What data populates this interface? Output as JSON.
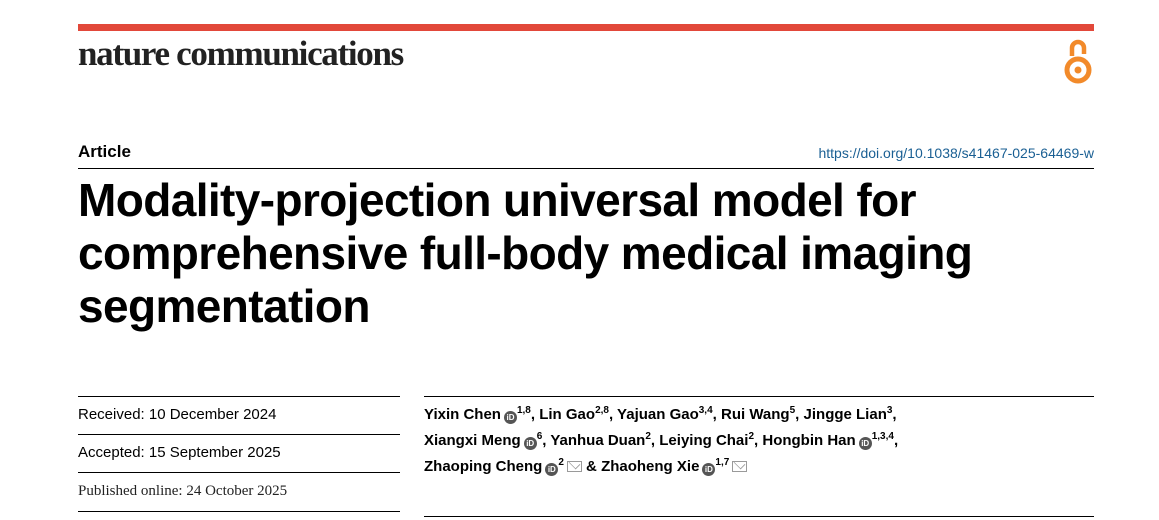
{
  "journal": "nature communications",
  "article_type": "Article",
  "doi": "https://doi.org/10.1038/s41467-025-64469-w",
  "title_lines": [
    "Modality-projection universal model for",
    "comprehensive full-body medical imaging",
    "segmentation"
  ],
  "dates": {
    "received": "Received: 10 December 2024",
    "accepted": "Accepted: 15 September 2025",
    "published": "Published online: 24 October 2025"
  },
  "authors": [
    {
      "name": "Yixin Chen",
      "orcid": true,
      "aff": "1,8",
      "sep": ","
    },
    {
      "name": "Lin Gao",
      "orcid": false,
      "aff": "2,8",
      "sep": ","
    },
    {
      "name": "Yajuan Gao",
      "orcid": false,
      "aff": "3,4",
      "sep": ","
    },
    {
      "name": "Rui Wang",
      "orcid": false,
      "aff": "5",
      "sep": ","
    },
    {
      "name": "Jingge Lian",
      "orcid": false,
      "aff": "3",
      "sep": ","
    },
    {
      "name": "Xiangxi Meng",
      "orcid": true,
      "aff": "6",
      "sep": ","
    },
    {
      "name": "Yanhua Duan",
      "orcid": false,
      "aff": "2",
      "sep": ","
    },
    {
      "name": "Leiying Chai",
      "orcid": false,
      "aff": "2",
      "sep": ","
    },
    {
      "name": "Hongbin Han",
      "orcid": true,
      "aff": "1,3,4",
      "sep": ","
    },
    {
      "name": "Zhaoping Cheng",
      "orcid": true,
      "aff": "2",
      "sep": "&",
      "corresponding": true
    },
    {
      "name": "Zhaoheng Xie",
      "orcid": true,
      "aff": "1,7",
      "sep": "",
      "corresponding": true
    }
  ],
  "icons": {
    "open_access": "open-access-icon",
    "orcid": "orcid-icon",
    "corresponding": "envelope-icon"
  },
  "colors": {
    "accent_bar": "#e2483a",
    "open_access": "#f28a2a",
    "doi_link": "#1a5f93"
  }
}
